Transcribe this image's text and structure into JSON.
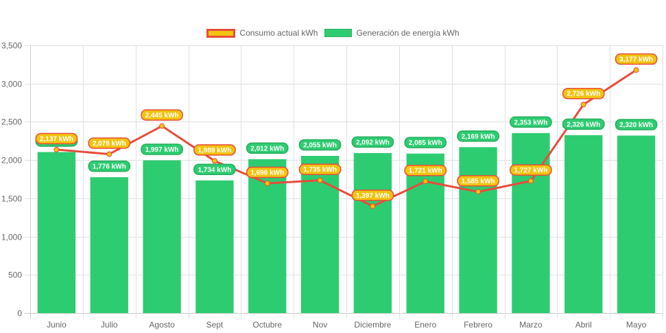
{
  "chart_data": {
    "type": "bar",
    "title": "",
    "xlabel": "",
    "ylabel": "",
    "ylim": [
      0,
      3500
    ],
    "y_ticks": [
      0,
      500,
      1000,
      1500,
      2000,
      2500,
      3000,
      3500
    ],
    "y_tick_labels": [
      "0",
      "500",
      "1,000",
      "1,500",
      "2,000",
      "2,500",
      "3,000",
      "3,500"
    ],
    "grid": true,
    "legend_position": "top-center",
    "categories": [
      "Junio",
      "Julio",
      "Agosto",
      "Sept",
      "Octubre",
      "Nov",
      "Diciembre",
      "Enero",
      "Febrero",
      "Marzo",
      "Abril",
      "Mayo"
    ],
    "series": [
      {
        "name": "Consumo actual kWh",
        "type": "line",
        "color": "#e74c3c",
        "point_color": "#f1c40f",
        "values": [
          2137,
          2078,
          2445,
          1989,
          1696,
          1735,
          1397,
          1721,
          1585,
          1727,
          2726,
          3177
        ],
        "data_labels": [
          "2,137 kWh",
          "2,078 kWh",
          "2,445 kWh",
          "1,989 kWh",
          "1,696 kWh",
          "1,735 kWh",
          "1,397 kWh",
          "1,721 kWh",
          "1,585 kWh",
          "1,727 kWh",
          "2,726 kWh",
          "3,177 kWh"
        ]
      },
      {
        "name": "Generación de energía kWh",
        "type": "bar",
        "color": "#2ecc71",
        "values": [
          2105,
          1776,
          1997,
          1734,
          2012,
          2055,
          2092,
          2085,
          2169,
          2353,
          2326,
          2320
        ],
        "data_labels": [
          "2,105 kWh",
          "1,776 kWh",
          "1,997 kWh",
          "1,734 kWh",
          "2,012 kWh",
          "2,055 kWh",
          "2,092 kWh",
          "2,085 kWh",
          "2,169 kWh",
          "2,353 kWh",
          "2,326 kWh",
          "2,320 kWh"
        ]
      }
    ]
  },
  "legend": {
    "items": [
      {
        "label": "Consumo actual kWh"
      },
      {
        "label": "Generación de energía kWh"
      }
    ]
  }
}
